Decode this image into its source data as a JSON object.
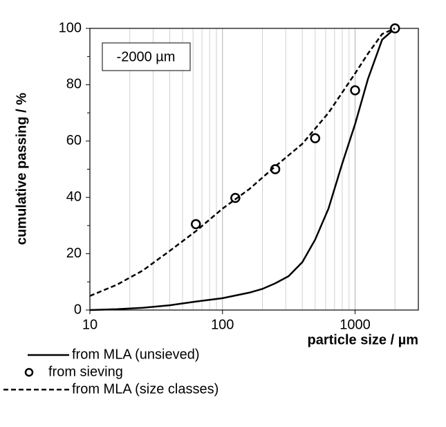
{
  "chart_data": {
    "type": "line",
    "xlabel": "particle size / µm",
    "ylabel": "cumulative passing / %",
    "annotation": "-2000 µm",
    "xscale": "log",
    "xlim": [
      10,
      3000
    ],
    "xticks": [
      10,
      100,
      1000
    ],
    "ylim": [
      0,
      100
    ],
    "yticks": [
      0,
      20,
      40,
      60,
      80,
      100
    ],
    "grid": "x-minor",
    "legend": "below-left",
    "series": [
      {
        "name": "from MLA (unsieved)",
        "style": "solid",
        "color": "#000000",
        "x": [
          10,
          16,
          25,
          40,
          63,
          100,
          160,
          200,
          250,
          315,
          400,
          500,
          630,
          800,
          1000,
          1250,
          1600,
          2000
        ],
        "values": [
          0,
          0.3,
          0.8,
          1.7,
          3,
          4.2,
          6.2,
          7.5,
          9.5,
          12,
          17,
          25,
          36,
          52,
          66,
          82,
          96,
          100
        ]
      },
      {
        "name": "from sieving",
        "style": "circle",
        "color": "#000000",
        "x": [
          63,
          125,
          250,
          500,
          1000,
          2000
        ],
        "values": [
          30.5,
          39.8,
          50,
          61,
          78,
          100
        ]
      },
      {
        "name": "from MLA (size classes)",
        "style": "dashed",
        "color": "#000000",
        "x": [
          10,
          16,
          25,
          40,
          63,
          100,
          160,
          250,
          400,
          630,
          1000,
          1250,
          1600,
          2000
        ],
        "values": [
          5,
          9,
          14,
          21,
          28,
          36,
          43,
          51,
          59,
          70,
          84,
          91,
          98,
          100
        ]
      }
    ]
  }
}
